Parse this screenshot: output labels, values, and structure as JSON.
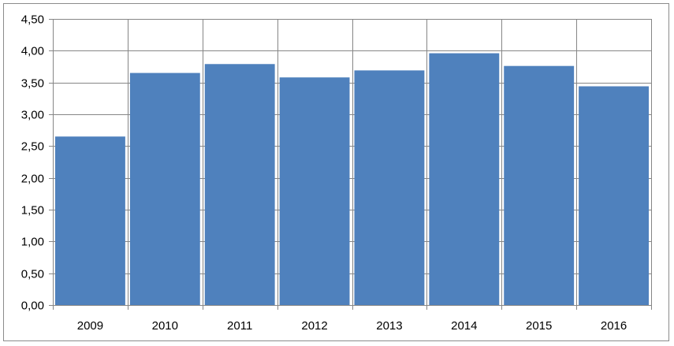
{
  "chart_data": {
    "type": "bar",
    "categories": [
      "2009",
      "2010",
      "2011",
      "2012",
      "2013",
      "2014",
      "2015",
      "2016"
    ],
    "values": [
      2.65,
      3.65,
      3.79,
      3.58,
      3.69,
      3.96,
      3.76,
      3.44
    ],
    "ylim": [
      0,
      4.5
    ],
    "yticks": [
      "0,00",
      "0,50",
      "1,00",
      "1,50",
      "2,00",
      "2,50",
      "3,00",
      "3,50",
      "4,00",
      "4,50"
    ],
    "grid": true,
    "legend": "none",
    "title": "",
    "xlabel": "",
    "ylabel": "",
    "colors": {
      "bar": "#4f81bd",
      "grid": "#868686",
      "axis": "#868686"
    }
  }
}
